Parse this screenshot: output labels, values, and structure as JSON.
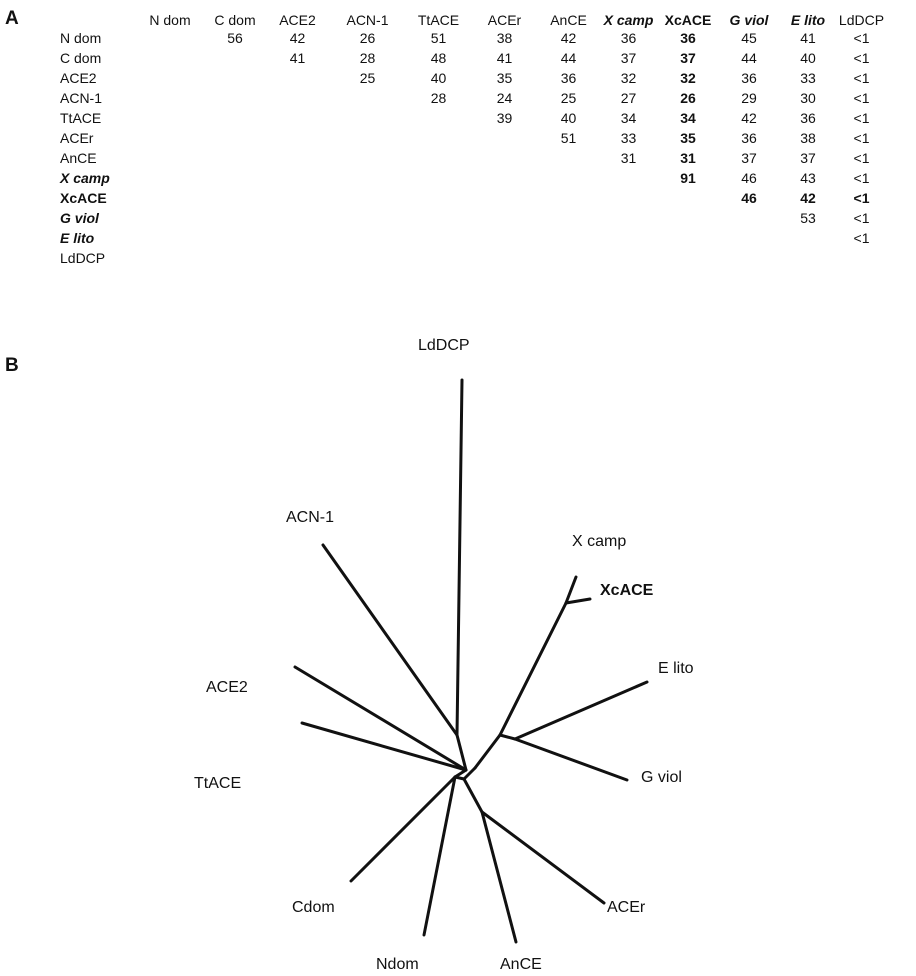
{
  "panels": {
    "a": "A",
    "b": "B"
  },
  "table": {
    "columns": [
      "N dom",
      "C dom",
      "ACE2",
      "ACN-1",
      "TtACE",
      "ACEr",
      "AnCE",
      "X camp",
      "XcACE",
      "G viol",
      "E lito",
      "LdDCP"
    ],
    "column_styles": [
      "",
      "",
      "",
      "",
      "",
      "",
      "",
      "em",
      "strong",
      "em",
      "em",
      ""
    ],
    "rows": [
      {
        "label": "N dom",
        "style": "",
        "values": [
          "",
          "56",
          "42",
          "26",
          "51",
          "38",
          "42",
          "36",
          "36",
          "45",
          "41",
          "<1"
        ]
      },
      {
        "label": "C dom",
        "style": "",
        "values": [
          "",
          "",
          "41",
          "28",
          "48",
          "41",
          "44",
          "37",
          "37",
          "44",
          "40",
          "<1"
        ]
      },
      {
        "label": "ACE2",
        "style": "",
        "values": [
          "",
          "",
          "",
          "25",
          "40",
          "35",
          "36",
          "32",
          "32",
          "36",
          "33",
          "<1"
        ]
      },
      {
        "label": "ACN-1",
        "style": "",
        "values": [
          "",
          "",
          "",
          "",
          "28",
          "24",
          "25",
          "27",
          "26",
          "29",
          "30",
          "<1"
        ]
      },
      {
        "label": "TtACE",
        "style": "",
        "values": [
          "",
          "",
          "",
          "",
          "",
          "39",
          "40",
          "34",
          "34",
          "42",
          "36",
          "<1"
        ]
      },
      {
        "label": "ACEr",
        "style": "",
        "values": [
          "",
          "",
          "",
          "",
          "",
          "",
          "51",
          "33",
          "35",
          "36",
          "38",
          "<1"
        ]
      },
      {
        "label": "AnCE",
        "style": "",
        "values": [
          "",
          "",
          "",
          "",
          "",
          "",
          "",
          "31",
          "31",
          "37",
          "37",
          "<1"
        ]
      },
      {
        "label": "X camp",
        "style": "em",
        "values": [
          "",
          "",
          "",
          "",
          "",
          "",
          "",
          "",
          "91",
          "46",
          "43",
          "<1"
        ]
      },
      {
        "label": "XcACE",
        "style": "strong",
        "values": [
          "",
          "",
          "",
          "",
          "",
          "",
          "",
          "",
          "",
          "46",
          "42",
          "<1"
        ]
      },
      {
        "label": "G viol",
        "style": "em",
        "values": [
          "",
          "",
          "",
          "",
          "",
          "",
          "",
          "",
          "",
          "",
          "53",
          "<1"
        ]
      },
      {
        "label": "E lito",
        "style": "em",
        "values": [
          "",
          "",
          "",
          "",
          "",
          "",
          "",
          "",
          "",
          "",
          "",
          "<1"
        ]
      },
      {
        "label": "LdDCP",
        "style": "",
        "values": [
          "",
          "",
          "",
          "",
          "",
          "",
          "",
          "",
          "",
          "",
          "",
          ""
        ]
      }
    ]
  },
  "tree": {
    "taxa": {
      "lddcp": "LdDCP",
      "acn1": "ACN-1",
      "xcamp": "X camp",
      "xcace": "XcACE",
      "elito": "E lito",
      "ace2": "ACE2",
      "gviol": "G viol",
      "ttace": "TtACE",
      "cdom": "Cdom",
      "acer": "ACEr",
      "ndom": "Ndom",
      "ance": "AnCE"
    }
  }
}
